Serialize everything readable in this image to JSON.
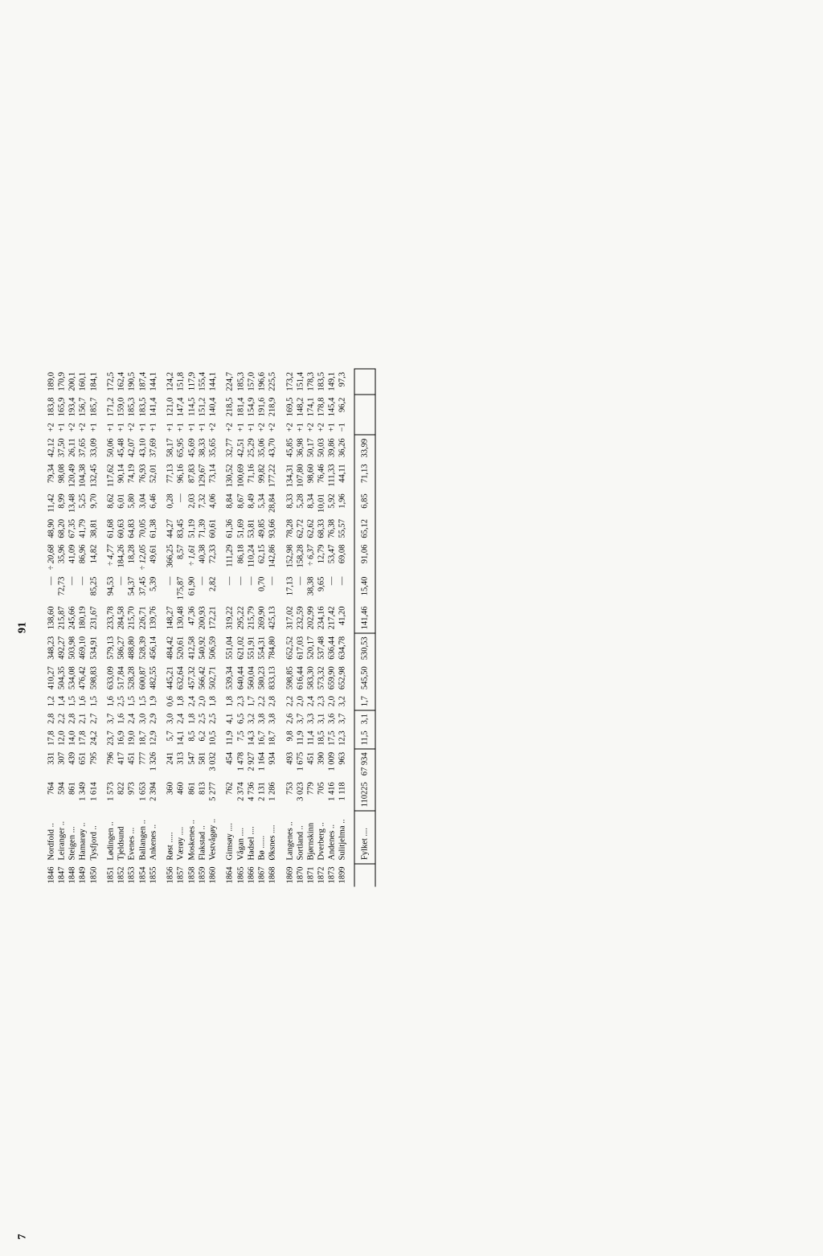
{
  "page_number": 91,
  "corner": "7",
  "summary_label": "Fylket ....",
  "groups": [
    [
      [
        "1846",
        "Nordfold ..",
        "764",
        "331",
        "17,8",
        "2,8",
        "1,2",
        "410,27",
        "348,23",
        "138,60",
        "—",
        "÷ 20,68",
        "48,90",
        "11,42",
        "79,34",
        "42,12",
        "+2",
        "183,8",
        "189,0"
      ],
      [
        "1847",
        "Leiranger ..",
        "594",
        "307",
        "12,0",
        "2,2",
        "1,4",
        "504,35",
        "492,27",
        "215,87",
        "72,73",
        "35,96",
        "68,20",
        "8,99",
        "98,08",
        "37,50",
        "+1",
        "165,9",
        "170,9"
      ],
      [
        "1848",
        "Steigen ...",
        "861",
        "439",
        "14,0",
        "2,8",
        "1,5",
        "534,08",
        "503,98",
        "245,66",
        "—",
        "41,09",
        "67,35",
        "13,48",
        "120,49",
        "26,11",
        "+2",
        "193,4",
        "200,1"
      ],
      [
        "1849",
        "Hamarøy ..",
        "1 349",
        "651",
        "17,8",
        "2,1",
        "1,6",
        "476,42",
        "469,10",
        "180,19",
        "—",
        "86,96",
        "41,79",
        "5,25",
        "104,38",
        "37,65",
        "+2",
        "156,7",
        "160,1"
      ],
      [
        "1850",
        "Tysfjord ..",
        "1 614",
        "795",
        "24,2",
        "2,7",
        "1,5",
        "598,83",
        "534,91",
        "231,67",
        "85,25",
        "14,82",
        "38,81",
        "9,70",
        "132,45",
        "33,09",
        "+1",
        "185,7",
        "184,1"
      ]
    ],
    [
      [
        "1851",
        "Lødingen ..",
        "1 573",
        "796",
        "23,7",
        "3,7",
        "1,6",
        "633,09",
        "579,13",
        "233,78",
        "94,53",
        "÷ 4,77",
        "61,68",
        "8,62",
        "117,62",
        "50,06",
        "+1",
        "171,2",
        "172,5"
      ],
      [
        "1852",
        "Tjeldsund",
        "822",
        "417",
        "16,9",
        "1,6",
        "2,5",
        "517,84",
        "586,27",
        "284,58",
        "—",
        "184,26",
        "60,63",
        "6,01",
        "90,14",
        "45,48",
        "+1",
        "159,0",
        "162,4"
      ],
      [
        "1853",
        "Evenes ...",
        "973",
        "451",
        "19,0",
        "2,4",
        "1,5",
        "528,28",
        "488,80",
        "215,70",
        "54,37",
        "18,28",
        "64,83",
        "5,80",
        "74,19",
        "42,07",
        "+2",
        "185,3",
        "190,5"
      ],
      [
        "1854",
        "Ballangen ..",
        "1 653",
        "777",
        "18,7",
        "3,0",
        "1,5",
        "600,87",
        "528,39",
        "226,71",
        "37,45",
        "÷ 12,05",
        "70,05",
        "3,04",
        "76,93",
        "43,10",
        "+1",
        "183,5",
        "187,4"
      ],
      [
        "1855",
        "Ankenes ..",
        "2 394",
        "1 326",
        "12,9",
        "2,9",
        "1,9",
        "482,55",
        "456,14",
        "139,76",
        "5,39",
        "49,61",
        "61,38",
        "6,46",
        "52,01",
        "37,69",
        "+1",
        "141,4",
        "144,1"
      ]
    ],
    [
      [
        "1856",
        "Røst .....",
        "360",
        "241",
        "5,7",
        "3,0",
        "0,6",
        "445,21",
        "484,42",
        "148,27",
        "—",
        "366,25",
        "44,27",
        "0,28",
        "77,13",
        "58,17",
        "+1",
        "121,0",
        "124,2"
      ],
      [
        "1857",
        "Værøy ....",
        "460",
        "313",
        "14,1",
        "2,4",
        "1,8",
        "632,64",
        "520,61",
        "130,48",
        "175,87",
        "8,57",
        "83,45",
        "—",
        "96,16",
        "65,95",
        "+1",
        "147,4",
        "151,8"
      ],
      [
        "1858",
        "Moskenes ..",
        "861",
        "547",
        "8,5",
        "1,8",
        "2,4",
        "457,32",
        "412,58",
        "47,36",
        "61,90",
        "÷ 1,61",
        "51,19",
        "2,03",
        "87,83",
        "45,69",
        "+1",
        "114,5",
        "117,9"
      ],
      [
        "1859",
        "Flakstad ..",
        "813",
        "581",
        "6,2",
        "2,5",
        "2,0",
        "566,42",
        "540,92",
        "200,93",
        "—",
        "40,38",
        "71,39",
        "7,32",
        "129,67",
        "38,33",
        "+1",
        "151,2",
        "155,4"
      ],
      [
        "1860",
        "Vestvågøy ..",
        "5 277",
        "3 032",
        "10,5",
        "2,5",
        "1,8",
        "502,71",
        "506,59",
        "172,21",
        "2,82",
        "72,33",
        "60,61",
        "4,06",
        "73,14",
        "35,65",
        "+2",
        "140,4",
        "144,1"
      ]
    ],
    [
      [
        "1864",
        "Gimsøy ....",
        "762",
        "454",
        "11,9",
        "4,1",
        "1,8",
        "539,34",
        "551,04",
        "319,22",
        "—",
        "111,29",
        "61,36",
        "8,84",
        "130,52",
        "32,77",
        "+2",
        "218,5",
        "224,7"
      ],
      [
        "1865",
        "Vågan ....",
        "2 374",
        "1 478",
        "7,5",
        "6,5",
        "2,3",
        "640,44",
        "621,02",
        "295,22",
        "—",
        "86,18",
        "51,69",
        "8,67",
        "100,69",
        "42,51",
        "+1",
        "181,4",
        "185,3"
      ],
      [
        "1866",
        "Hadsel ....",
        "4 736",
        "2 927",
        "14,3",
        "3,2",
        "1,7",
        "560,04",
        "551,91",
        "215,79",
        "—",
        "110,24",
        "53,81",
        "8,49",
        "71,16",
        "25,29",
        "+1",
        "154,9",
        "157,0"
      ],
      [
        "1867",
        "Bø ......",
        "2 131",
        "1 164",
        "16,7",
        "3,8",
        "2,2",
        "580,23",
        "554,31",
        "269,90",
        "0,70",
        "62,15",
        "49,85",
        "5,34",
        "99,82",
        "35,06",
        "+2",
        "191,6",
        "196,6"
      ],
      [
        "1868",
        "Øksnes ....",
        "1 286",
        "934",
        "18,7",
        "3,8",
        "2,8",
        "833,13",
        "784,80",
        "425,13",
        "—",
        "142,86",
        "93,66",
        "28,84",
        "177,22",
        "43,70",
        "+2",
        "218,9",
        "225,5"
      ]
    ],
    [
      [
        "1869",
        "Langenes ..",
        "753",
        "493",
        "9,8",
        "2,6",
        "2,2",
        "598,85",
        "652,52",
        "317,02",
        "17,13",
        "152,98",
        "78,28",
        "8,33",
        "134,31",
        "45,85",
        "+2",
        "169,5",
        "173,2"
      ],
      [
        "1870",
        "Sortland ..",
        "3 023",
        "1 675",
        "11,9",
        "3,7",
        "2,0",
        "616,44",
        "617,03",
        "232,59",
        "—",
        "158,28",
        "62,72",
        "5,28",
        "107,80",
        "36,98",
        "+1",
        "148,2",
        "151,4"
      ],
      [
        "1871",
        "Bjørnskinn",
        "779",
        "451",
        "11,4",
        "3,3",
        "2,4",
        "583,30",
        "520,17",
        "202,99",
        "38,38",
        "÷ 6,37",
        "62,62",
        "8,34",
        "98,60",
        "50,17",
        "+2",
        "174,1",
        "178,3"
      ],
      [
        "1872",
        "Dverberg ..",
        "705",
        "390",
        "18,5",
        "3,1",
        "2,3",
        "573,32",
        "537,48",
        "234,16",
        "9,65",
        "12,79",
        "68,33",
        "10,01",
        "76,46",
        "50,03",
        "+2",
        "178,8",
        "183,5"
      ],
      [
        "1873",
        "Andenes ..",
        "1 416",
        "1 009",
        "17,5",
        "3,6",
        "2,0",
        "659,90",
        "636,44",
        "217,42",
        "—",
        "53,47",
        "76,38",
        "5,92",
        "111,33",
        "39,86",
        "+1",
        "145,4",
        "149,1"
      ],
      [
        "1899",
        "Sulitjelma ..",
        "1 118",
        "963",
        "12,3",
        "3,7",
        "3,2",
        "652,98",
        "634,78",
        "41,20",
        "—",
        "69,08",
        "55,57",
        "1,96",
        "44,11",
        "36,26",
        "−1",
        "96,2",
        "97,3"
      ]
    ]
  ],
  "summary": [
    "",
    "",
    "110225",
    "67 934",
    "11,5",
    "3,1",
    "1,7",
    "545,50",
    "530,53",
    "141,46",
    "15,40",
    "91,06",
    "65,12",
    "6,85",
    "71,13",
    "33,99",
    "",
    "",
    ""
  ]
}
